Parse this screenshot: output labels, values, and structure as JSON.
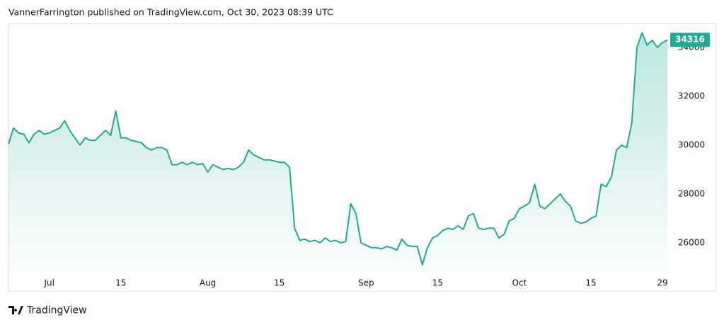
{
  "chart_data": {
    "type": "area",
    "title": "VannerFarrington published on TradingView.com, Oct 30, 2023 08:39 UTC",
    "x": [
      -8,
      -7,
      -6,
      -5,
      -4,
      -3,
      -2,
      -1,
      0,
      1,
      2,
      3,
      4,
      5,
      6,
      7,
      8,
      9,
      10,
      11,
      12,
      13,
      14,
      15,
      16,
      17,
      18,
      19,
      20,
      21,
      22,
      23,
      24,
      25,
      26,
      27,
      28,
      29,
      30,
      31,
      32,
      33,
      34,
      35,
      36,
      37,
      38,
      39,
      40,
      41,
      42,
      43,
      44,
      45,
      46,
      47,
      48,
      49,
      50,
      51,
      52,
      53,
      54,
      55,
      56,
      57,
      58,
      59,
      60,
      61,
      62,
      63,
      64,
      65,
      66,
      67,
      68,
      69,
      70,
      71,
      72,
      73,
      74,
      75,
      76,
      77,
      78,
      79,
      80,
      81,
      82,
      83,
      84,
      85,
      86,
      87,
      88,
      89,
      90,
      91,
      92,
      93,
      94,
      95,
      96,
      97,
      98,
      99,
      100,
      101,
      102,
      103,
      104,
      105,
      106,
      107,
      108,
      109,
      110,
      111,
      112,
      113,
      114,
      115,
      116,
      117,
      118,
      119,
      120,
      121
    ],
    "values": [
      30050,
      30700,
      30500,
      30450,
      30100,
      30450,
      30600,
      30450,
      30500,
      30600,
      30700,
      31000,
      30600,
      30300,
      30000,
      30300,
      30200,
      30200,
      30400,
      30600,
      30400,
      31400,
      30300,
      30300,
      30200,
      30150,
      30100,
      29900,
      29800,
      29900,
      29900,
      29800,
      29200,
      29200,
      29300,
      29200,
      29300,
      29200,
      29250,
      28900,
      29200,
      29100,
      29000,
      29050,
      29000,
      29100,
      29300,
      29800,
      29600,
      29500,
      29400,
      29400,
      29350,
      29300,
      29300,
      29100,
      26600,
      26100,
      26150,
      26050,
      26100,
      26000,
      26200,
      26050,
      26100,
      26000,
      26050,
      27600,
      27200,
      26000,
      25900,
      25800,
      25800,
      25750,
      25850,
      25800,
      25700,
      26150,
      25900,
      25850,
      25850,
      25100,
      25800,
      26200,
      26300,
      26500,
      26600,
      26550,
      26700,
      26550,
      27100,
      27200,
      26600,
      26550,
      26600,
      26600,
      26200,
      26350,
      26900,
      27000,
      27400,
      27500,
      27650,
      28400,
      27500,
      27400,
      27600,
      27800,
      28000,
      27700,
      27500,
      26900,
      26800,
      26850,
      27000,
      27100,
      28400,
      28300,
      28700,
      29800,
      30000,
      29900,
      30900,
      34000,
      34600,
      34100,
      34300,
      34000,
      34200,
      34316
    ],
    "color": "#22ab94",
    "xlim": [
      -8,
      121.1
    ],
    "xticks": [
      {
        "value": 0,
        "label": "Jul"
      },
      {
        "value": 14,
        "label": "15"
      },
      {
        "value": 31,
        "label": "Aug"
      },
      {
        "value": 45,
        "label": "15"
      },
      {
        "value": 62,
        "label": "Sep"
      },
      {
        "value": 76,
        "label": "15"
      },
      {
        "value": 92,
        "label": "Oct"
      },
      {
        "value": 106,
        "label": "15"
      },
      {
        "value": 120,
        "label": "29"
      }
    ],
    "ylim": [
      24780,
      34990
    ],
    "yticks": [
      26000,
      28000,
      30000,
      32000,
      34000
    ],
    "grid": false
  },
  "footer": {
    "brand": "TradingView"
  }
}
